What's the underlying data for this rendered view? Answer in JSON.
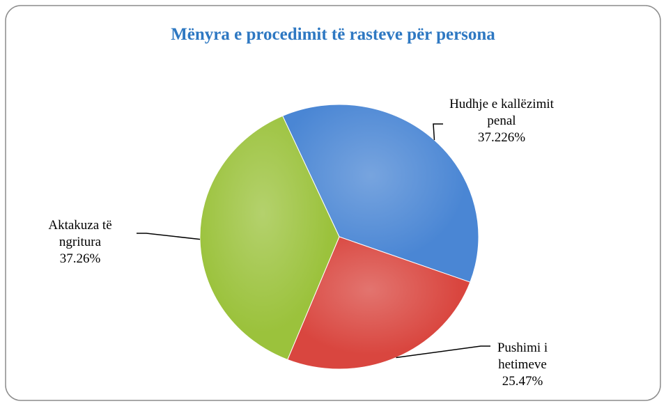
{
  "chart_data": {
    "type": "pie",
    "title": "Mënyra e procedimit të rasteve për persona",
    "categories": [
      "Hudhje e kallëzimit penal",
      "Pushimi i hetimeve",
      "Aktakuza të ngritura"
    ],
    "values": [
      37.226,
      25.47,
      37.26
    ],
    "value_labels": [
      "37.226%",
      "25.47%",
      "37.26%"
    ],
    "colors": [
      "#4a86d4",
      "#d9463f",
      "#9bc23c"
    ]
  }
}
